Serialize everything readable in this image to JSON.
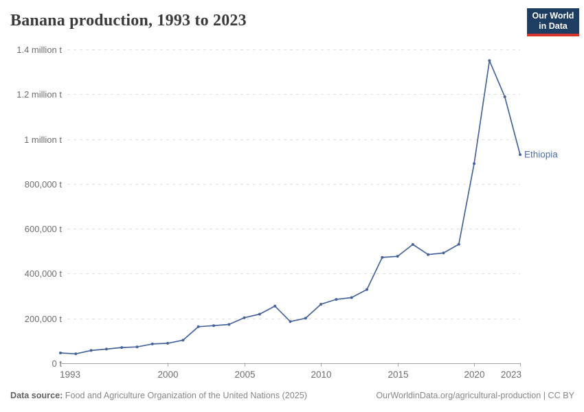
{
  "header": {
    "title": "Banana production, 1993 to 2023",
    "logo": {
      "line1": "Our World",
      "line2": "in Data"
    }
  },
  "chart_data": {
    "type": "line",
    "title": "Banana production, 1993 to 2023",
    "xlabel": "",
    "ylabel": "",
    "xlim": [
      1993,
      2023
    ],
    "ylim": [
      0,
      1400000
    ],
    "grid": "horizontal-dashed",
    "legend_position": "end-of-line-label",
    "x_ticks": [
      1993,
      2000,
      2005,
      2010,
      2015,
      2020,
      2023
    ],
    "y_ticks": [
      {
        "value": 0,
        "label": "0 t"
      },
      {
        "value": 200000,
        "label": "200,000 t"
      },
      {
        "value": 400000,
        "label": "400,000 t"
      },
      {
        "value": 600000,
        "label": "600,000 t"
      },
      {
        "value": 800000,
        "label": "800,000 t"
      },
      {
        "value": 1000000,
        "label": "1 million t"
      },
      {
        "value": 1200000,
        "label": "1.2 million t"
      },
      {
        "value": 1400000,
        "label": "1.4 million t"
      }
    ],
    "series": [
      {
        "name": "Ethiopia",
        "color": "#46649b",
        "label_color": "#4e6fa8",
        "x": [
          1993,
          1994,
          1995,
          1996,
          1997,
          1998,
          1999,
          2000,
          2001,
          2002,
          2003,
          2004,
          2005,
          2006,
          2007,
          2008,
          2009,
          2010,
          2011,
          2012,
          2013,
          2014,
          2015,
          2016,
          2017,
          2018,
          2019,
          2020,
          2021,
          2022,
          2023
        ],
        "values": [
          46000,
          42000,
          57000,
          63000,
          70000,
          73000,
          86000,
          89000,
          103000,
          163000,
          168000,
          173000,
          203000,
          219000,
          255000,
          186000,
          201000,
          263000,
          285000,
          293000,
          329000,
          472000,
          477000,
          530000,
          485000,
          492000,
          531000,
          891000,
          1350000,
          1189000,
          931000
        ]
      }
    ]
  },
  "footer": {
    "source_label": "Data source:",
    "source_text": "Food and Agriculture Organization of the United Nations (2025)",
    "attribution": "OurWorldinData.org/agricultural-production | CC BY"
  },
  "colors": {
    "brand_navy": "#1d3d63",
    "brand_red": "#d5352b",
    "line_blue": "#46649b",
    "grid_line": "#dedede",
    "axis_line": "#a3a3a3",
    "tick_text": "#6e6e6e",
    "title_text": "#3b3b3b",
    "footer_text": "#878787"
  }
}
